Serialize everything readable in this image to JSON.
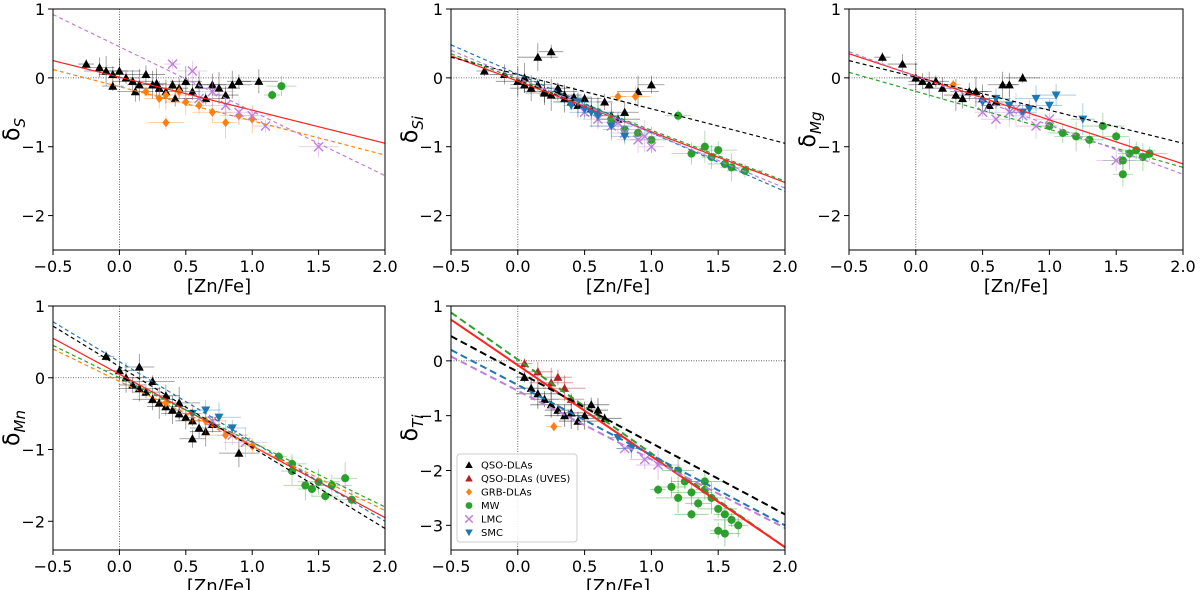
{
  "colors": {
    "QSO-DLAs": "#000000",
    "QSO-DLAs (UVES)": "#b22222",
    "GRB-DLAs": "#ff7f0e",
    "MW": "#2ca02c",
    "LMC": "#bf7fd8",
    "SMC": "#1f77b4",
    "fit_red": "#ff2222"
  },
  "legend": {
    "entries": [
      {
        "name": "QSO-DLAs",
        "marker": "triangle-up"
      },
      {
        "name": "QSO-DLAs (UVES)",
        "marker": "triangle-up"
      },
      {
        "name": "GRB-DLAs",
        "marker": "diamond"
      },
      {
        "name": "MW",
        "marker": "circle"
      },
      {
        "name": "LMC",
        "marker": "x"
      },
      {
        "name": "SMC",
        "marker": "triangle-down"
      }
    ]
  },
  "chart_data": [
    {
      "id": "S",
      "type": "scatter",
      "xlabel": "[Zn/Fe]",
      "ylabel_base": "δ",
      "ylabel_sub": "S",
      "xlim": [
        -0.5,
        2.0
      ],
      "ylim": [
        -2.5,
        1.0
      ],
      "xticks": [
        "−0.5",
        "0.0",
        "0.5",
        "1.0",
        "1.5",
        "2.0"
      ],
      "yticks": [
        "−2",
        "−1",
        "0",
        "1"
      ],
      "fits": [
        {
          "color": "fit_red",
          "dash": "solid",
          "x": [
            -0.5,
            2.0
          ],
          "y": [
            0.25,
            -0.95
          ]
        },
        {
          "color": "GRB-DLAs",
          "dash": "dashed",
          "x": [
            -0.5,
            2.0
          ],
          "y": [
            0.12,
            -1.12
          ]
        },
        {
          "color": "LMC",
          "dash": "dashed",
          "x": [
            -0.5,
            2.0
          ],
          "y": [
            0.92,
            -1.42
          ]
        }
      ],
      "series": [
        {
          "name": "QSO-DLAs",
          "x": [
            -0.25,
            -0.15,
            -0.1,
            -0.05,
            0.0,
            0.05,
            0.1,
            0.15,
            0.2,
            0.25,
            0.3,
            0.35,
            0.4,
            0.45,
            0.5,
            0.55,
            0.6,
            0.65,
            0.7,
            0.75,
            0.8,
            0.85,
            0.9,
            1.05,
            -0.05,
            0.12,
            0.28,
            0.42
          ],
          "y": [
            0.2,
            0.15,
            0.1,
            0.05,
            0.1,
            0.0,
            -0.05,
            -0.1,
            0.05,
            -0.1,
            -0.15,
            -0.2,
            -0.1,
            -0.15,
            -0.05,
            -0.2,
            -0.1,
            -0.3,
            -0.1,
            -0.15,
            -0.25,
            -0.1,
            -0.05,
            -0.05,
            -0.12,
            -0.2,
            -0.08,
            -0.3
          ]
        },
        {
          "name": "GRB-DLAs",
          "x": [
            0.2,
            0.3,
            0.35,
            0.45,
            0.5,
            0.6,
            0.7,
            0.8,
            0.9,
            1.0,
            0.35
          ],
          "y": [
            -0.2,
            -0.3,
            -0.25,
            -0.2,
            -0.35,
            -0.4,
            -0.5,
            -0.65,
            -0.55,
            -0.6,
            -0.65
          ]
        },
        {
          "name": "MW",
          "x": [
            1.15,
            1.22
          ],
          "y": [
            -0.25,
            -0.12
          ]
        },
        {
          "name": "LMC",
          "x": [
            0.4,
            0.55,
            0.7,
            0.8,
            0.9,
            1.1,
            1.5,
            0.6,
            1.0
          ],
          "y": [
            0.2,
            0.1,
            -0.2,
            -0.4,
            -0.5,
            -0.7,
            -1.0,
            -0.3,
            -0.55
          ]
        }
      ]
    },
    {
      "id": "Si",
      "type": "scatter",
      "xlabel": "[Zn/Fe]",
      "ylabel_base": "δ",
      "ylabel_sub": "Si",
      "xlim": [
        -0.5,
        2.0
      ],
      "ylim": [
        -2.5,
        1.0
      ],
      "xticks": [
        "−0.5",
        "0.0",
        "0.5",
        "1.0",
        "1.5",
        "2.0"
      ],
      "yticks": [
        "−2",
        "−1",
        "0",
        "1"
      ],
      "fits": [
        {
          "color": "fit_red",
          "dash": "solid",
          "x": [
            -0.5,
            2.0
          ],
          "y": [
            0.32,
            -1.52
          ]
        },
        {
          "color": "QSO-DLAs",
          "dash": "dashed",
          "x": [
            -0.5,
            2.0
          ],
          "y": [
            0.3,
            -0.95
          ]
        },
        {
          "color": "MW",
          "dash": "dashed",
          "x": [
            -0.5,
            2.0
          ],
          "y": [
            0.35,
            -1.5
          ]
        },
        {
          "color": "SMC",
          "dash": "dashed",
          "x": [
            -0.5,
            2.0
          ],
          "y": [
            0.48,
            -1.65
          ]
        },
        {
          "color": "LMC",
          "dash": "dashed",
          "x": [
            -0.5,
            2.0
          ],
          "y": [
            0.4,
            -1.6
          ]
        }
      ],
      "series": [
        {
          "name": "QSO-DLAs",
          "x": [
            -0.25,
            -0.1,
            0.0,
            0.05,
            0.1,
            0.15,
            0.2,
            0.25,
            0.3,
            0.35,
            0.4,
            0.45,
            0.5,
            0.55,
            0.6,
            0.65,
            0.7,
            0.75,
            0.8,
            0.9,
            1.0,
            0.15,
            0.25,
            0.2,
            0.3,
            0.42,
            0.05,
            0.35
          ],
          "y": [
            0.1,
            0.05,
            -0.05,
            -0.1,
            -0.15,
            -0.1,
            -0.2,
            -0.25,
            -0.2,
            -0.3,
            -0.35,
            -0.4,
            -0.3,
            -0.45,
            -0.5,
            -0.35,
            -0.55,
            -0.6,
            -0.5,
            -0.2,
            -0.1,
            0.3,
            0.38,
            -0.22,
            -0.15,
            -0.28,
            0.0,
            -0.25
          ]
        },
        {
          "name": "GRB-DLAs",
          "x": [
            0.75,
            0.88
          ],
          "y": [
            -0.27,
            -0.27
          ]
        },
        {
          "name": "MW",
          "x": [
            0.6,
            0.7,
            0.8,
            0.9,
            1.0,
            1.2,
            1.3,
            1.4,
            1.5,
            1.6,
            1.7,
            1.45,
            1.55
          ],
          "y": [
            -0.5,
            -0.6,
            -0.75,
            -0.8,
            -0.9,
            -0.55,
            -1.1,
            -1.0,
            -1.05,
            -1.3,
            -1.35,
            -1.15,
            -1.25
          ]
        },
        {
          "name": "LMC",
          "x": [
            0.5,
            0.6,
            0.7,
            0.8,
            0.9,
            1.0,
            0.75,
            0.95
          ],
          "y": [
            -0.5,
            -0.6,
            -0.7,
            -0.8,
            -0.9,
            -1.0,
            -0.65,
            -0.85
          ]
        },
        {
          "name": "SMC",
          "x": [
            0.4,
            0.5,
            0.55,
            0.6,
            0.7,
            0.8,
            0.45
          ],
          "y": [
            -0.4,
            -0.45,
            -0.5,
            -0.55,
            -0.7,
            -0.85,
            -0.35
          ]
        }
      ]
    },
    {
      "id": "Mg",
      "type": "scatter",
      "xlabel": "[Zn/Fe]",
      "ylabel_base": "δ",
      "ylabel_sub": "Mg",
      "xlim": [
        -0.5,
        2.0
      ],
      "ylim": [
        -2.5,
        1.0
      ],
      "xticks": [
        "−0.5",
        "0.0",
        "0.5",
        "1.0",
        "1.5",
        "2.0"
      ],
      "yticks": [
        "−2",
        "−1",
        "0",
        "1"
      ],
      "fits": [
        {
          "color": "fit_red",
          "dash": "solid",
          "x": [
            -0.5,
            2.0
          ],
          "y": [
            0.35,
            -1.25
          ]
        },
        {
          "color": "QSO-DLAs",
          "dash": "dashed",
          "x": [
            -0.5,
            2.0
          ],
          "y": [
            0.25,
            -0.95
          ]
        },
        {
          "color": "MW",
          "dash": "dashed",
          "x": [
            -0.5,
            2.0
          ],
          "y": [
            0.08,
            -1.3
          ]
        },
        {
          "color": "LMC",
          "dash": "dashed",
          "x": [
            -0.5,
            2.0
          ],
          "y": [
            0.38,
            -1.4
          ]
        }
      ],
      "series": [
        {
          "name": "QSO-DLAs",
          "x": [
            -0.25,
            -0.1,
            0.0,
            0.05,
            0.1,
            0.15,
            0.2,
            0.3,
            0.4,
            0.5,
            0.6,
            0.7,
            0.8,
            0.35,
            0.45,
            0.55,
            0.65
          ],
          "y": [
            0.3,
            0.2,
            0.0,
            -0.05,
            -0.1,
            -0.05,
            -0.15,
            -0.25,
            -0.2,
            -0.3,
            -0.35,
            -0.1,
            0.0,
            -0.3,
            -0.2,
            -0.4,
            -0.1
          ]
        },
        {
          "name": "GRB-DLAs",
          "x": [
            0.28
          ],
          "y": [
            -0.1
          ]
        },
        {
          "name": "MW",
          "x": [
            1.0,
            1.1,
            1.2,
            1.3,
            1.4,
            1.5,
            1.55,
            1.6,
            1.65,
            1.7,
            1.75,
            1.55
          ],
          "y": [
            -0.7,
            -0.8,
            -0.85,
            -0.9,
            -0.7,
            -0.85,
            -1.2,
            -1.1,
            -1.05,
            -1.15,
            -1.1,
            -1.4
          ]
        },
        {
          "name": "LMC",
          "x": [
            0.5,
            0.6,
            0.7,
            0.8,
            0.9,
            1.0,
            1.5,
            0.75
          ],
          "y": [
            -0.5,
            -0.6,
            -0.5,
            -0.55,
            -0.7,
            -0.6,
            -1.2,
            -0.45
          ]
        },
        {
          "name": "SMC",
          "x": [
            0.5,
            0.6,
            0.7,
            0.8,
            0.9,
            1.0,
            1.05,
            1.25,
            0.85
          ],
          "y": [
            -0.35,
            -0.3,
            -0.4,
            -0.5,
            -0.3,
            -0.4,
            -0.25,
            -0.6,
            -0.45
          ]
        }
      ]
    },
    {
      "id": "Mn",
      "type": "scatter",
      "xlabel": "[Zn/Fe]",
      "ylabel_base": "δ",
      "ylabel_sub": "Mn",
      "xlim": [
        -0.5,
        2.0
      ],
      "ylim": [
        -2.4,
        1.0
      ],
      "xticks": [
        "−0.5",
        "0.0",
        "0.5",
        "1.0",
        "1.5",
        "2.0"
      ],
      "yticks": [
        "−2",
        "−1",
        "0",
        "1"
      ],
      "fits": [
        {
          "color": "fit_red",
          "dash": "solid",
          "x": [
            -0.5,
            2.0
          ],
          "y": [
            0.55,
            -1.95
          ]
        },
        {
          "color": "QSO-DLAs",
          "dash": "dashed",
          "x": [
            -0.5,
            2.0
          ],
          "y": [
            0.72,
            -2.1
          ]
        },
        {
          "color": "SMC",
          "dash": "dashed",
          "x": [
            -0.5,
            2.0
          ],
          "y": [
            0.78,
            -2.0
          ]
        },
        {
          "color": "MW",
          "dash": "dashed",
          "x": [
            -0.5,
            2.0
          ],
          "y": [
            0.45,
            -1.8
          ]
        },
        {
          "color": "GRB-DLAs",
          "dash": "dashed",
          "x": [
            -0.5,
            2.0
          ],
          "y": [
            0.4,
            -1.85
          ]
        }
      ],
      "series": [
        {
          "name": "QSO-DLAs",
          "x": [
            -0.1,
            0.0,
            0.05,
            0.1,
            0.15,
            0.2,
            0.25,
            0.3,
            0.35,
            0.4,
            0.45,
            0.5,
            0.55,
            0.6,
            0.65,
            0.7,
            0.15,
            0.25,
            0.35,
            0.45,
            0.55,
            0.9
          ],
          "y": [
            0.3,
            0.1,
            0.0,
            -0.1,
            -0.15,
            -0.2,
            -0.3,
            -0.35,
            -0.4,
            -0.45,
            -0.5,
            -0.55,
            -0.6,
            -0.7,
            -0.75,
            -0.65,
            0.15,
            -0.05,
            -0.25,
            -0.35,
            -0.85,
            -1.05
          ]
        },
        {
          "name": "GRB-DLAs",
          "x": [
            0.35,
            0.55,
            0.8,
            1.0,
            0.65
          ],
          "y": [
            -0.35,
            -0.5,
            -0.8,
            -0.95,
            -0.6
          ]
        },
        {
          "name": "MW",
          "x": [
            1.2,
            1.3,
            1.4,
            1.45,
            1.5,
            1.55,
            1.6,
            1.7,
            1.75,
            1.3
          ],
          "y": [
            -1.1,
            -1.2,
            -1.5,
            -1.55,
            -1.45,
            -1.65,
            -1.5,
            -1.4,
            -1.7,
            -1.3
          ]
        },
        {
          "name": "LMC",
          "x": [
            0.7,
            0.85,
            0.95
          ],
          "y": [
            -0.6,
            -0.8,
            -0.9
          ]
        },
        {
          "name": "SMC",
          "x": [
            0.55,
            0.65,
            0.75,
            0.85
          ],
          "y": [
            -0.5,
            -0.45,
            -0.55,
            -0.7
          ]
        }
      ]
    },
    {
      "id": "Ti",
      "type": "scatter",
      "xlabel": "[Zn/Fe]",
      "ylabel_base": "δ",
      "ylabel_sub": "Ti",
      "xlim": [
        -0.5,
        2.0
      ],
      "ylim": [
        -3.45,
        1.0
      ],
      "xticks": [
        "−0.5",
        "0.0",
        "0.5",
        "1.0",
        "1.5",
        "2.0"
      ],
      "yticks": [
        "−3",
        "−2",
        "−1",
        "0",
        "1"
      ],
      "fits": [
        {
          "color": "MW",
          "dash": "dashed",
          "x": [
            -0.5,
            2.0
          ],
          "y": [
            0.88,
            -3.4
          ]
        },
        {
          "color": "fit_red",
          "dash": "solid",
          "x": [
            -0.5,
            2.0
          ],
          "y": [
            0.75,
            -3.4
          ]
        },
        {
          "color": "QSO-DLAs",
          "dash": "dashed",
          "x": [
            -0.5,
            2.0
          ],
          "y": [
            0.45,
            -2.8
          ]
        },
        {
          "color": "SMC",
          "dash": "dashed",
          "x": [
            -0.5,
            2.0
          ],
          "y": [
            0.2,
            -3.0
          ]
        },
        {
          "color": "LMC",
          "dash": "dashed",
          "x": [
            -0.5,
            2.0
          ],
          "y": [
            0.08,
            -3.05
          ]
        }
      ],
      "series": [
        {
          "name": "QSO-DLAs",
          "x": [
            0.05,
            0.1,
            0.15,
            0.2,
            0.25,
            0.3,
            0.35,
            0.4,
            0.45,
            0.5,
            0.55,
            0.6,
            0.65
          ],
          "y": [
            -0.3,
            -0.5,
            -0.6,
            -0.7,
            -0.8,
            -0.9,
            -1.0,
            -0.95,
            -1.1,
            -1.0,
            -0.8,
            -0.9,
            -1.05
          ]
        },
        {
          "name": "QSO-DLAs (UVES)",
          "x": [
            0.05,
            0.15,
            0.25,
            0.3,
            0.35,
            0.4
          ],
          "y": [
            -0.05,
            -0.2,
            -0.4,
            -0.3,
            -0.5,
            -0.7
          ]
        },
        {
          "name": "GRB-DLAs",
          "x": [
            0.27
          ],
          "y": [
            -1.2
          ]
        },
        {
          "name": "MW",
          "x": [
            1.05,
            1.15,
            1.2,
            1.25,
            1.3,
            1.35,
            1.4,
            1.45,
            1.5,
            1.55,
            1.6,
            1.65,
            1.3,
            1.4,
            1.2,
            1.5,
            1.55
          ],
          "y": [
            -2.35,
            -2.3,
            -2.5,
            -2.2,
            -2.4,
            -2.6,
            -2.2,
            -2.5,
            -2.7,
            -2.8,
            -2.9,
            -3.0,
            -2.8,
            -2.35,
            -2.0,
            -3.1,
            -3.15
          ]
        },
        {
          "name": "LMC",
          "x": [
            0.8,
            0.95,
            1.05
          ],
          "y": [
            -1.6,
            -1.8,
            -1.9
          ]
        },
        {
          "name": "SMC",
          "x": [
            0.75,
            0.85
          ],
          "y": [
            -1.4,
            -1.6
          ]
        }
      ]
    }
  ]
}
